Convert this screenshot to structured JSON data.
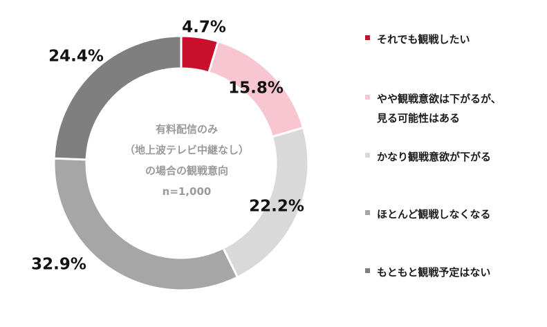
{
  "chart_data": {
    "type": "pie",
    "variant": "donut",
    "title": "",
    "center_label": {
      "line1": "有料配信のみ",
      "line2": "（地上波テレビ中継なし）",
      "line3": "の場合の観戦意向",
      "line4": "n=1,000"
    },
    "categories": [
      "それでも観戦したい",
      "やや観戦意欲は下がるが、\n見る可能性はある",
      "かなり観戦意欲が下がる",
      "ほとんど観戦しなくなる",
      "もともと観戦予定はない"
    ],
    "values": [
      4.7,
      15.8,
      22.2,
      32.9,
      24.4
    ],
    "value_labels": [
      "4.7%",
      "15.8%",
      "22.2%",
      "32.9%",
      "24.4%"
    ],
    "colors": [
      "#c8102e",
      "#f7c6d0",
      "#d9d9d9",
      "#a6a6a6",
      "#7f7f7f"
    ],
    "legend_position": "right",
    "start_angle": "top, clockwise"
  }
}
